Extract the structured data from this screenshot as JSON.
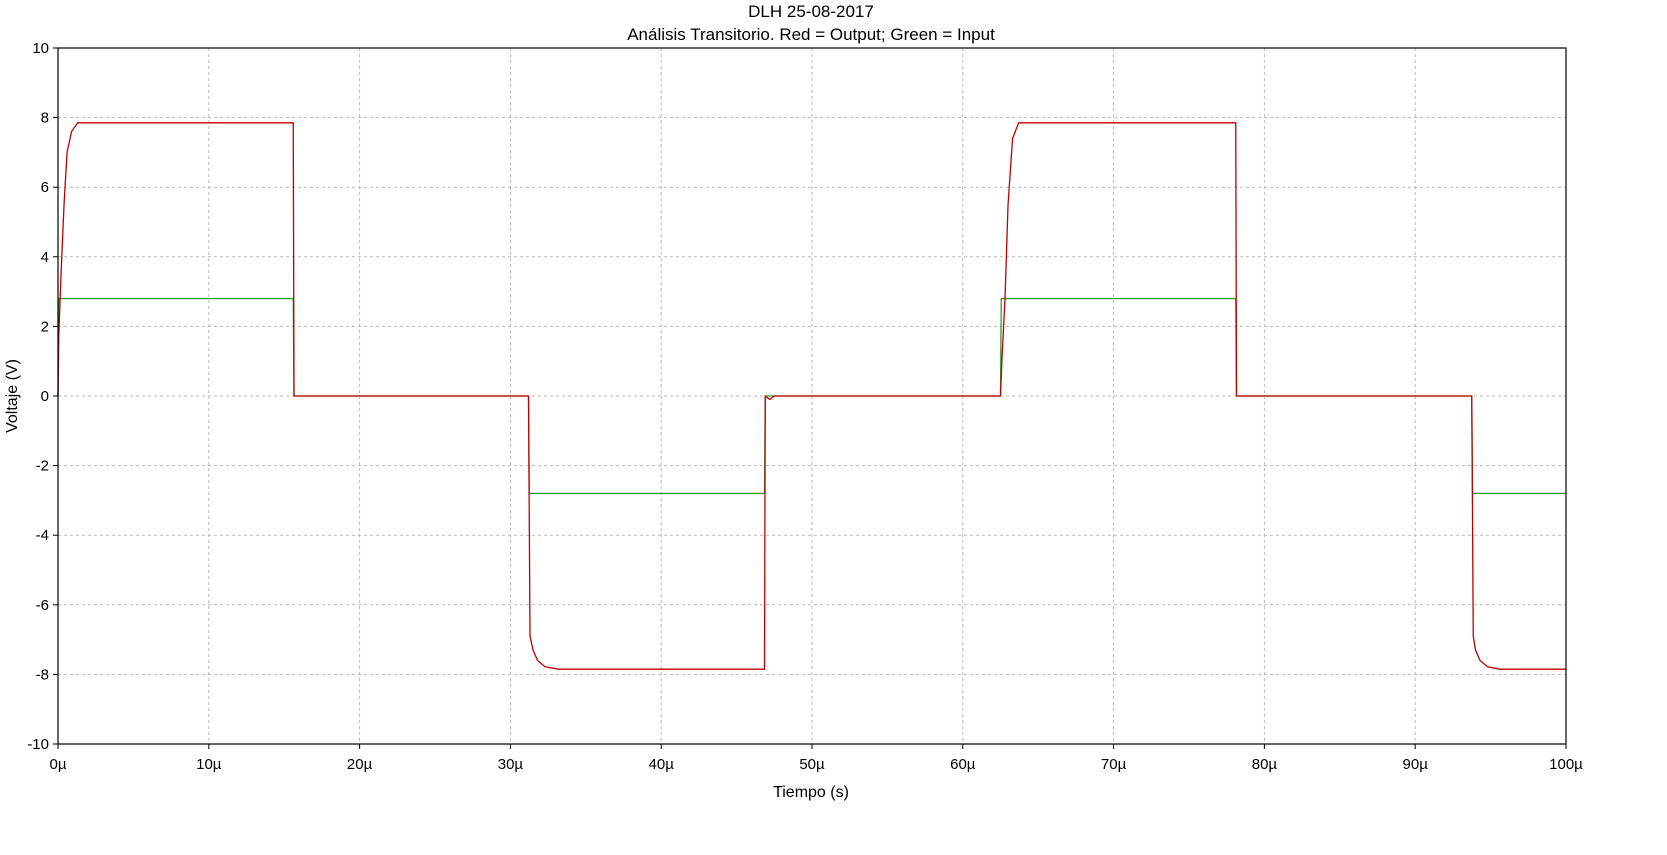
{
  "chart_data": {
    "type": "line",
    "title": "DLH 25-08-2017",
    "subtitle": "Análisis Transitorio. Red = Output; Green = Input",
    "xlabel": "Tiempo (s)",
    "ylabel": "Voltaje (V)",
    "xlim": [
      0,
      100
    ],
    "ylim": [
      -10,
      10
    ],
    "x_ticks": [
      0,
      10,
      20,
      30,
      40,
      50,
      60,
      70,
      80,
      90,
      100
    ],
    "x_tick_labels": [
      "0µ",
      "10µ",
      "20µ",
      "30µ",
      "40µ",
      "50µ",
      "60µ",
      "70µ",
      "80µ",
      "90µ",
      "100µ"
    ],
    "y_ticks": [
      10,
      8,
      6,
      4,
      2,
      0,
      -2,
      -4,
      -6,
      -8,
      -10
    ],
    "y_tick_labels": [
      "10",
      "8",
      "6",
      "4",
      "2",
      "0",
      "-2",
      "-4",
      "-6",
      "-8",
      "-10"
    ],
    "grid": true,
    "series": [
      {
        "color": "#2ca02c",
        "x": [
          0,
          0.05,
          15.6,
          15.65,
          31.2,
          31.25,
          46.85,
          46.9,
          62.5,
          62.55,
          78.1,
          78.15,
          93.75,
          93.8,
          100
        ],
        "y": [
          0,
          2.8,
          2.8,
          0,
          0,
          -2.8,
          -2.8,
          0,
          0,
          2.8,
          2.8,
          0,
          0,
          -2.8,
          -2.8
        ]
      },
      {
        "color": "#c00000",
        "x": [
          0,
          0.05,
          0.2,
          0.4,
          0.6,
          0.9,
          1.3,
          15.6,
          15.65,
          16.3,
          31.2,
          31.3,
          31.5,
          31.8,
          32.3,
          33.2,
          46.85,
          46.9,
          47.2,
          47.5,
          62.5,
          62.6,
          62.8,
          63.0,
          63.3,
          63.7,
          78.1,
          78.15,
          78.4,
          93.75,
          93.85,
          94.0,
          94.3,
          94.8,
          95.6,
          100
        ],
        "y": [
          0,
          1.7,
          3.5,
          5.5,
          7.0,
          7.6,
          7.85,
          7.85,
          0,
          0,
          0,
          -6.9,
          -7.3,
          -7.6,
          -7.78,
          -7.85,
          -7.85,
          0,
          -0.1,
          0,
          0,
          1.1,
          2.8,
          5.5,
          7.4,
          7.85,
          7.85,
          0,
          0,
          0,
          -6.9,
          -7.3,
          -7.6,
          -7.78,
          -7.85,
          -7.85
        ]
      }
    ]
  }
}
